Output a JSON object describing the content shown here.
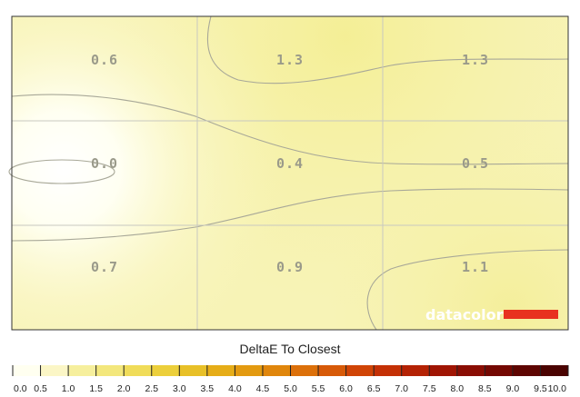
{
  "chart_data": {
    "type": "heatmap",
    "grid": {
      "rows": 3,
      "cols": 3
    },
    "values": [
      [
        "0.6",
        "1.3",
        "1.3"
      ],
      [
        "0.0",
        "0.4",
        "0.5"
      ],
      [
        "0.7",
        "0.9",
        "1.1"
      ]
    ],
    "legend_title": "DeltaE To Closest",
    "legend_ticks": [
      "0.0",
      "0.5",
      "1.0",
      "1.5",
      "2.0",
      "2.5",
      "3.0",
      "3.5",
      "4.0",
      "4.5",
      "5.0",
      "5.5",
      "6.0",
      "6.5",
      "7.0",
      "7.5",
      "8.0",
      "8.5",
      "9.0",
      "9.5",
      "10.0"
    ],
    "legend_colors": [
      "#fffff0",
      "#fbf6c6",
      "#f6ef9d",
      "#f3e77c",
      "#f0dc59",
      "#eccf3b",
      "#e8c028",
      "#e6ad18",
      "#e39a10",
      "#e0860c",
      "#dc700a",
      "#d75a08",
      "#d04406",
      "#c43005",
      "#b42204",
      "#a01503",
      "#8a0d03",
      "#740802",
      "#5e0501",
      "#4a0301"
    ],
    "legend_range": [
      0,
      10
    ],
    "brand": "datacolor",
    "brand_color": "#e8321f"
  }
}
